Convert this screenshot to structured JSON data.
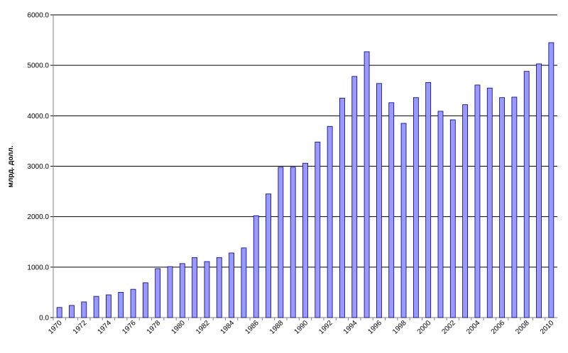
{
  "chart_data": {
    "type": "bar",
    "y_label": "млрд. долл.",
    "categories": [
      "1970",
      null,
      "1972",
      null,
      "1974",
      null,
      "1976",
      null,
      "1978",
      null,
      "1980",
      null,
      "1982",
      null,
      "1984",
      null,
      "1986",
      null,
      "1988",
      null,
      "1990",
      null,
      "1992",
      null,
      "1994",
      null,
      "1996",
      null,
      "1998",
      null,
      "2000",
      null,
      "2002",
      null,
      "2004",
      null,
      "2006",
      null,
      "2008",
      null,
      "2010"
    ],
    "values": [
      200,
      240,
      310,
      420,
      450,
      500,
      560,
      690,
      970,
      1010,
      1070,
      1190,
      1110,
      1190,
      1280,
      1380,
      2020,
      2450,
      2980,
      2980,
      3060,
      3480,
      3790,
      4350,
      4780,
      5270,
      4640,
      4260,
      3850,
      4360,
      4660,
      4090,
      3920,
      4220,
      4610,
      4550,
      4360,
      4370,
      4880,
      5030,
      5450
    ],
    "color": "#9999ff",
    "ylim": [
      0,
      6000
    ],
    "yticks": [
      {
        "value": 0,
        "label": "0.0"
      },
      {
        "value": 1000,
        "label": "1000.0"
      },
      {
        "value": 2000,
        "label": "2000.0"
      },
      {
        "value": 3000,
        "label": "3000.0"
      },
      {
        "value": 4000,
        "label": "4000.0"
      },
      {
        "value": 5000,
        "label": "5000.0"
      },
      {
        "value": 6000,
        "label": "6000.0"
      }
    ],
    "grid": true
  }
}
